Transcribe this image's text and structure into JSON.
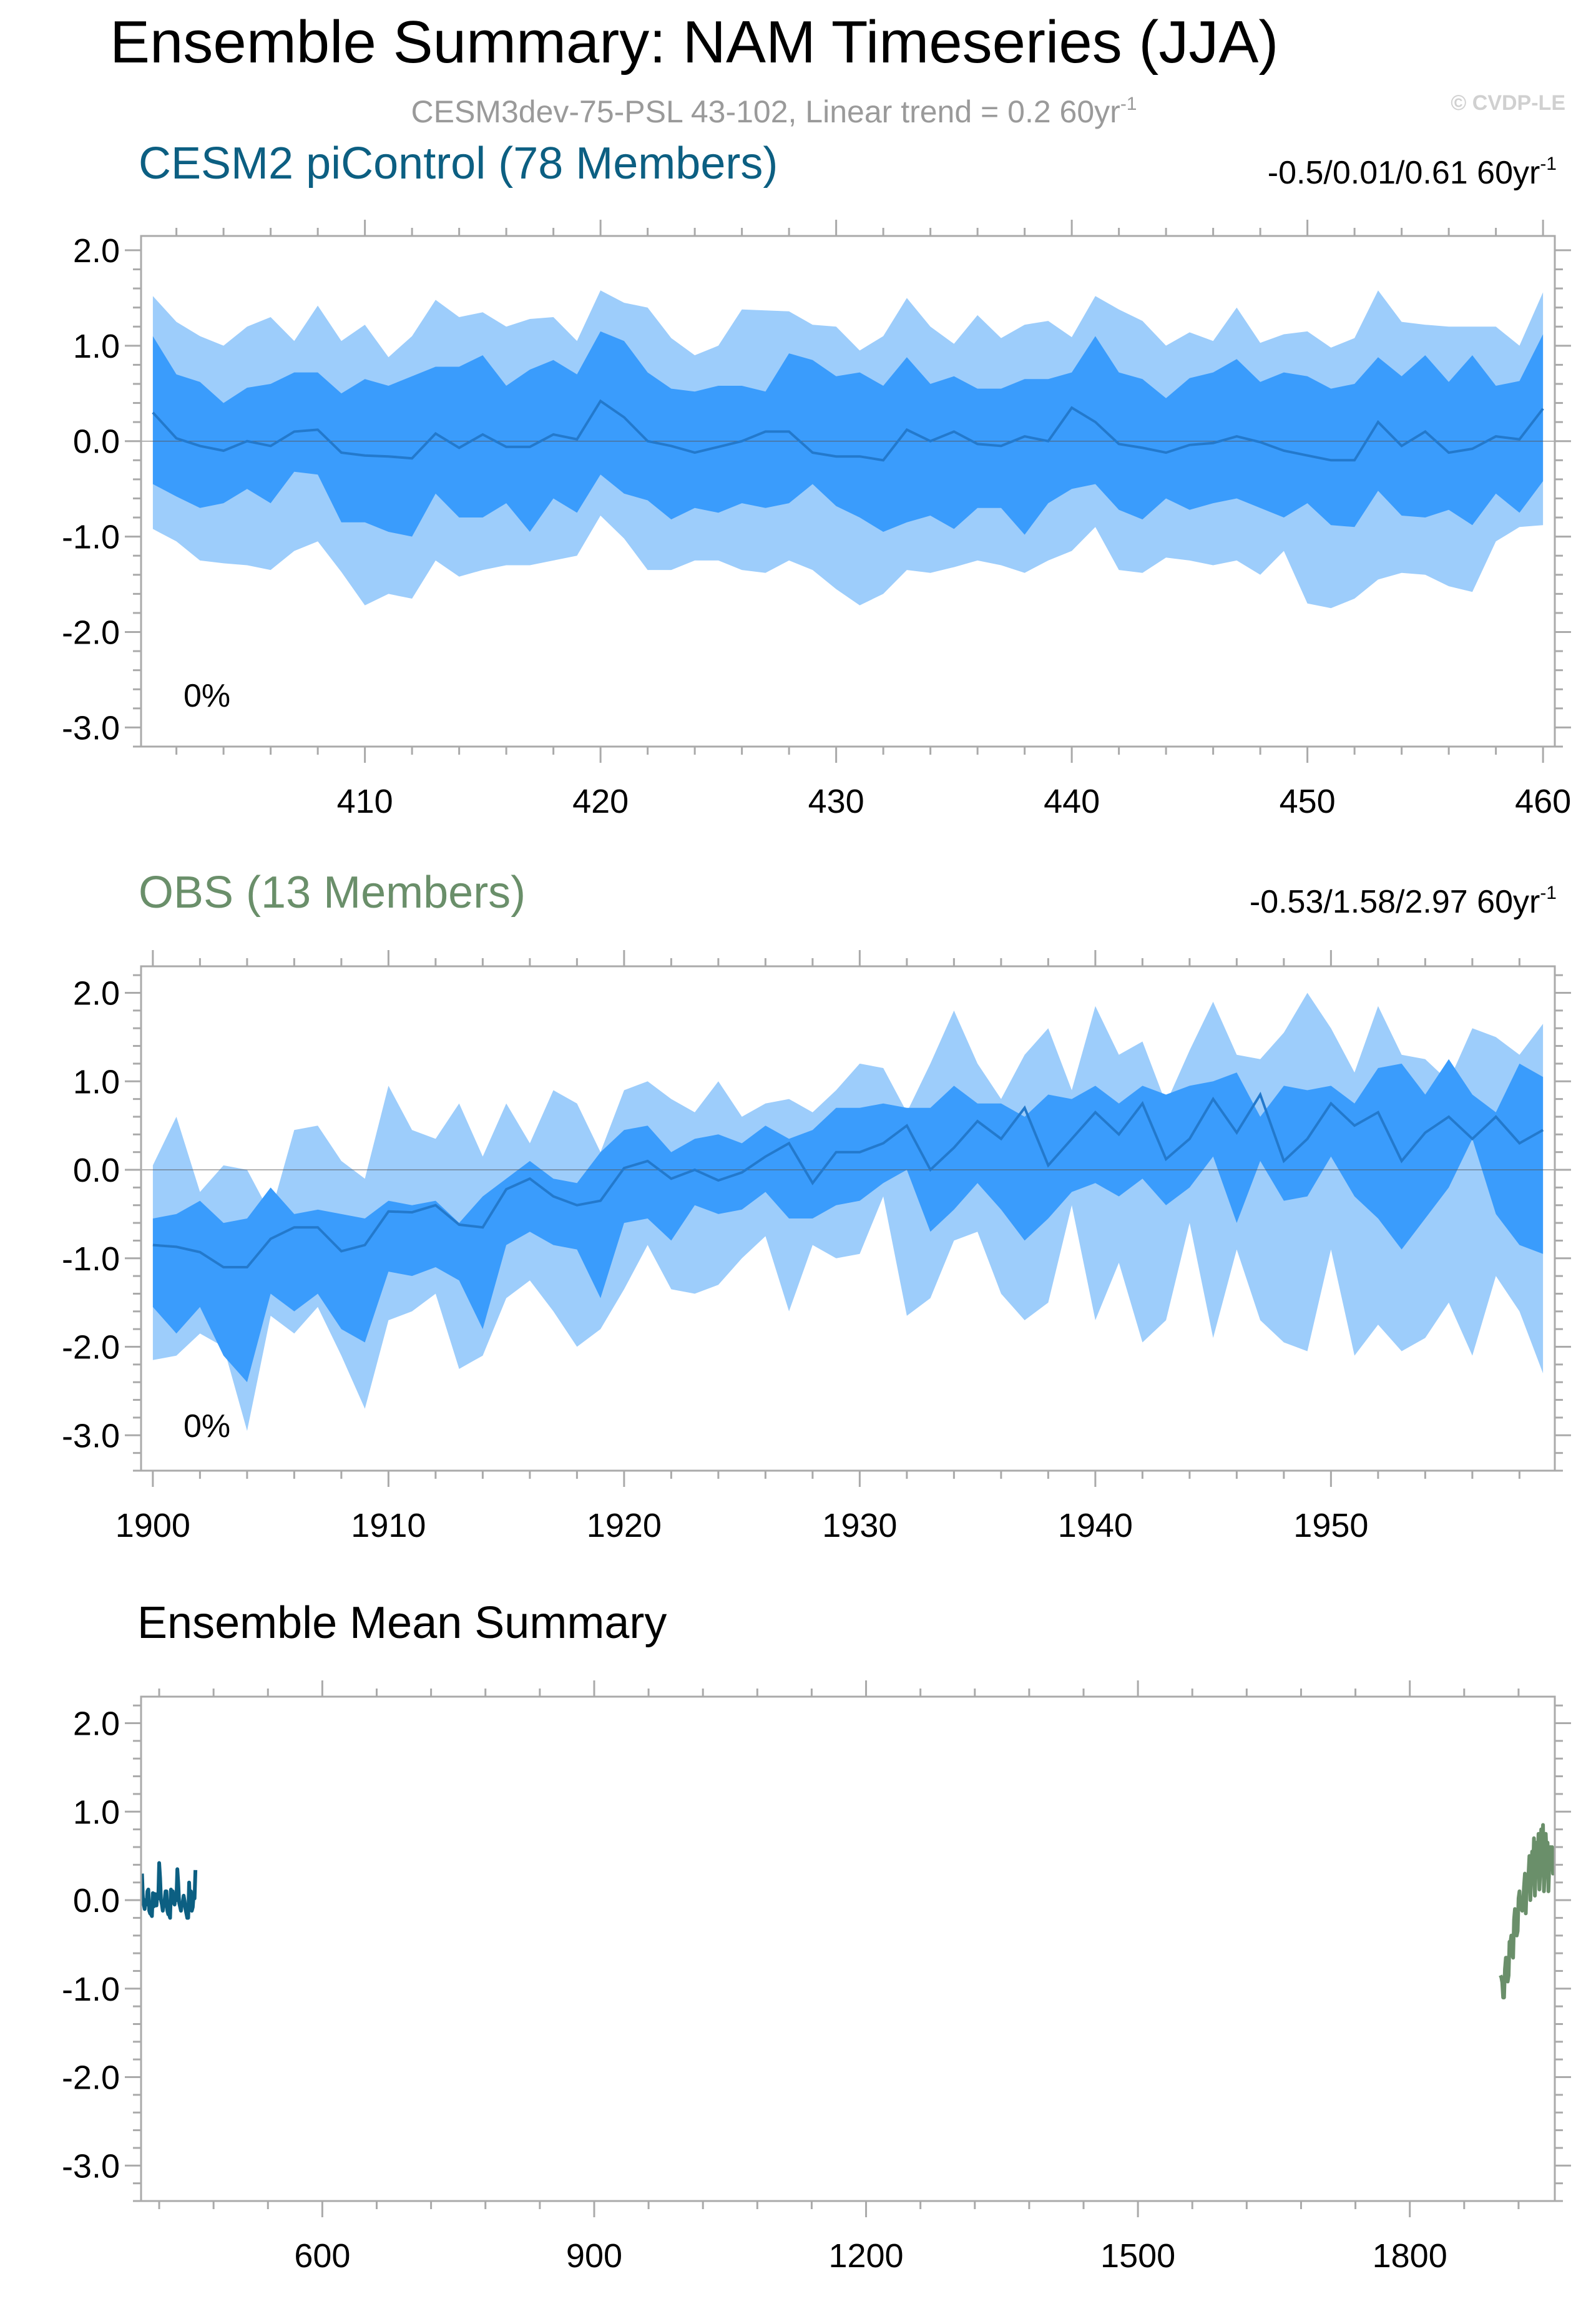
{
  "page": {
    "title": "Ensemble Summary: NAM Timeseries (JJA)",
    "subtitle": "CESM3dev-75-PSL 43-102, Linear trend = 0.2 60yr",
    "subtitle_sup": "-1",
    "watermark": "© CVDP-LE"
  },
  "colors": {
    "band_outer": "#9dcdfb",
    "band_inner": "#3a9cfc",
    "mean_line": "#2379cc",
    "cesm_title": "#0c5f82",
    "obs_title": "#6a8f6a",
    "frame": "#aaaaaa",
    "zero_line": "#555555",
    "mean_panel_cesm": "#0c5f82",
    "mean_panel_obs": "#6a8f6a"
  },
  "chart_data": [
    {
      "type": "area",
      "title": "CESM2 piControl (78 Members)",
      "trend_label": "-0.5/0.01/0.61 60yr",
      "trend_sup": "-1",
      "percent_label": "0%",
      "xlim": [
        400.5,
        460.5
      ],
      "ylim": [
        -3.2,
        2.15
      ],
      "yticks": [
        -3.0,
        -2.0,
        -1.0,
        0.0,
        1.0,
        2.0
      ],
      "ytick_labels": [
        "-3.0",
        "-2.0",
        "-1.0",
        "0.0",
        "1.0",
        "2.0"
      ],
      "xticks": [
        410,
        420,
        430,
        440,
        450,
        460
      ],
      "xtick_labels": [
        "410",
        "420",
        "430",
        "440",
        "450",
        "460"
      ],
      "x": [
        401,
        402,
        403,
        404,
        405,
        406,
        407,
        408,
        409,
        410,
        411,
        412,
        413,
        414,
        415,
        416,
        417,
        418,
        419,
        420,
        421,
        422,
        423,
        424,
        425,
        426,
        427,
        428,
        429,
        430,
        431,
        432,
        433,
        434,
        435,
        436,
        437,
        438,
        439,
        440,
        441,
        442,
        443,
        444,
        445,
        446,
        447,
        448,
        449,
        450,
        451,
        452,
        453,
        454,
        455,
        456,
        457,
        458,
        459,
        460
      ],
      "series": [
        {
          "role": "max",
          "values": [
            1.52,
            1.25,
            1.1,
            1.0,
            1.2,
            1.3,
            1.05,
            1.42,
            1.05,
            1.22,
            0.88,
            1.1,
            1.48,
            1.3,
            1.35,
            1.2,
            1.28,
            1.3,
            1.05,
            1.58,
            1.45,
            1.4,
            1.08,
            0.9,
            1.0,
            1.38,
            1.37,
            1.36,
            1.22,
            1.2,
            0.95,
            1.1,
            1.5,
            1.2,
            1.02,
            1.32,
            1.08,
            1.22,
            1.26,
            1.09,
            1.52,
            1.38,
            1.26,
            1.0,
            1.14,
            1.05,
            1.4,
            1.03,
            1.12,
            1.15,
            0.98,
            1.08,
            1.58,
            1.25,
            1.22,
            1.2,
            1.2,
            1.2,
            1.0,
            1.56
          ]
        },
        {
          "role": "p75",
          "values": [
            1.1,
            0.7,
            0.62,
            0.4,
            0.56,
            0.6,
            0.72,
            0.72,
            0.5,
            0.65,
            0.58,
            0.68,
            0.78,
            0.78,
            0.9,
            0.58,
            0.75,
            0.85,
            0.7,
            1.15,
            1.05,
            0.72,
            0.55,
            0.52,
            0.58,
            0.58,
            0.52,
            0.92,
            0.85,
            0.68,
            0.72,
            0.58,
            0.88,
            0.6,
            0.68,
            0.55,
            0.55,
            0.65,
            0.65,
            0.72,
            1.1,
            0.72,
            0.65,
            0.45,
            0.66,
            0.72,
            0.86,
            0.62,
            0.72,
            0.68,
            0.55,
            0.6,
            0.88,
            0.68,
            0.9,
            0.62,
            0.9,
            0.58,
            0.63,
            1.12
          ]
        },
        {
          "role": "mean",
          "values": [
            0.3,
            0.03,
            -0.05,
            -0.1,
            -0.0,
            -0.05,
            0.1,
            0.12,
            -0.12,
            -0.15,
            -0.16,
            -0.18,
            0.08,
            -0.07,
            0.07,
            -0.06,
            -0.06,
            0.07,
            0.02,
            0.42,
            0.25,
            0.0,
            -0.05,
            -0.12,
            -0.06,
            0.0,
            0.1,
            0.1,
            -0.12,
            -0.16,
            -0.16,
            -0.2,
            0.12,
            0.0,
            0.1,
            -0.03,
            -0.05,
            0.05,
            0.0,
            0.35,
            0.2,
            -0.03,
            -0.07,
            -0.12,
            -0.04,
            -0.02,
            0.05,
            -0.01,
            -0.1,
            -0.15,
            -0.2,
            -0.2,
            0.2,
            -0.05,
            0.1,
            -0.12,
            -0.08,
            0.05,
            0.02,
            0.34
          ]
        },
        {
          "role": "p25",
          "values": [
            -0.45,
            -0.58,
            -0.7,
            -0.65,
            -0.5,
            -0.65,
            -0.32,
            -0.35,
            -0.85,
            -0.85,
            -0.95,
            -1.0,
            -0.55,
            -0.8,
            -0.8,
            -0.65,
            -0.95,
            -0.6,
            -0.75,
            -0.35,
            -0.55,
            -0.62,
            -0.82,
            -0.7,
            -0.75,
            -0.65,
            -0.7,
            -0.65,
            -0.45,
            -0.68,
            -0.8,
            -0.95,
            -0.85,
            -0.78,
            -0.92,
            -0.7,
            -0.7,
            -0.98,
            -0.65,
            -0.5,
            -0.45,
            -0.72,
            -0.82,
            -0.6,
            -0.72,
            -0.65,
            -0.6,
            -0.7,
            -0.8,
            -0.65,
            -0.88,
            -0.9,
            -0.52,
            -0.78,
            -0.8,
            -0.72,
            -0.88,
            -0.55,
            -0.75,
            -0.42
          ]
        },
        {
          "role": "min",
          "values": [
            -0.92,
            -1.05,
            -1.25,
            -1.28,
            -1.3,
            -1.35,
            -1.15,
            -1.05,
            -1.37,
            -1.72,
            -1.6,
            -1.65,
            -1.25,
            -1.42,
            -1.35,
            -1.3,
            -1.3,
            -1.25,
            -1.2,
            -0.78,
            -1.02,
            -1.35,
            -1.35,
            -1.25,
            -1.25,
            -1.35,
            -1.38,
            -1.25,
            -1.35,
            -1.55,
            -1.72,
            -1.6,
            -1.35,
            -1.38,
            -1.32,
            -1.25,
            -1.3,
            -1.38,
            -1.25,
            -1.15,
            -0.9,
            -1.35,
            -1.38,
            -1.22,
            -1.25,
            -1.3,
            -1.25,
            -1.4,
            -1.15,
            -1.7,
            -1.75,
            -1.65,
            -1.45,
            -1.38,
            -1.4,
            -1.52,
            -1.58,
            -1.05,
            -0.9,
            -0.88
          ]
        }
      ]
    },
    {
      "type": "area",
      "title": "OBS (13 Members)",
      "trend_label": "-0.53/1.58/2.97 60yr",
      "trend_sup": "-1",
      "percent_label": "0%",
      "xlim": [
        1899.5,
        1959.5
      ],
      "ylim": [
        -3.4,
        2.3
      ],
      "yticks": [
        -3.0,
        -2.0,
        -1.0,
        0.0,
        1.0,
        2.0
      ],
      "ytick_labels": [
        "-3.0",
        "-2.0",
        "-1.0",
        "0.0",
        "1.0",
        "2.0"
      ],
      "xticks": [
        1900,
        1910,
        1920,
        1930,
        1940,
        1950
      ],
      "xtick_labels": [
        "1900",
        "1910",
        "1920",
        "1930",
        "1940",
        "1950"
      ],
      "x": [
        1900,
        1901,
        1902,
        1903,
        1904,
        1905,
        1906,
        1907,
        1908,
        1909,
        1910,
        1911,
        1912,
        1913,
        1914,
        1915,
        1916,
        1917,
        1918,
        1919,
        1920,
        1921,
        1922,
        1923,
        1924,
        1925,
        1926,
        1927,
        1928,
        1929,
        1930,
        1931,
        1932,
        1933,
        1934,
        1935,
        1936,
        1937,
        1938,
        1939,
        1940,
        1941,
        1942,
        1943,
        1944,
        1945,
        1946,
        1947,
        1948,
        1949,
        1950,
        1951,
        1952,
        1953,
        1954,
        1955,
        1956,
        1957,
        1958,
        1959
      ],
      "series": [
        {
          "role": "max",
          "values": [
            0.05,
            0.6,
            -0.25,
            0.05,
            0.0,
            -0.5,
            0.45,
            0.5,
            0.1,
            -0.1,
            0.95,
            0.45,
            0.35,
            0.75,
            0.15,
            0.75,
            0.3,
            0.9,
            0.75,
            0.2,
            0.9,
            1.0,
            0.8,
            0.65,
            1.0,
            0.6,
            0.75,
            0.8,
            0.65,
            0.9,
            1.2,
            1.15,
            0.65,
            1.2,
            1.8,
            1.2,
            0.8,
            1.3,
            1.6,
            0.9,
            1.85,
            1.3,
            1.45,
            0.75,
            1.35,
            1.9,
            1.3,
            1.25,
            1.55,
            2.0,
            1.6,
            1.1,
            1.85,
            1.3,
            1.25,
            1.0,
            1.6,
            1.5,
            1.3,
            1.65
          ]
        },
        {
          "role": "p75",
          "values": [
            -0.55,
            -0.5,
            -0.35,
            -0.6,
            -0.55,
            -0.2,
            -0.5,
            -0.45,
            -0.5,
            -0.55,
            -0.35,
            -0.4,
            -0.35,
            -0.6,
            -0.3,
            -0.1,
            0.1,
            -0.1,
            -0.15,
            0.2,
            0.45,
            0.5,
            0.2,
            0.35,
            0.4,
            0.3,
            0.5,
            0.35,
            0.45,
            0.7,
            0.7,
            0.75,
            0.7,
            0.7,
            0.95,
            0.75,
            0.75,
            0.6,
            0.85,
            0.8,
            0.95,
            0.75,
            0.95,
            0.85,
            0.95,
            1.0,
            1.1,
            0.6,
            0.95,
            0.9,
            0.95,
            0.75,
            1.15,
            1.2,
            0.85,
            1.25,
            0.85,
            0.65,
            1.2,
            1.05
          ]
        },
        {
          "role": "mean",
          "values": [
            -0.85,
            -0.87,
            -0.93,
            -1.1,
            -1.1,
            -0.78,
            -0.65,
            -0.65,
            -0.92,
            -0.85,
            -0.47,
            -0.48,
            -0.4,
            -0.62,
            -0.65,
            -0.22,
            -0.1,
            -0.3,
            -0.4,
            -0.35,
            0.02,
            0.1,
            -0.1,
            0.0,
            -0.12,
            -0.03,
            0.15,
            0.3,
            -0.15,
            0.2,
            0.2,
            0.3,
            0.5,
            0.0,
            0.25,
            0.55,
            0.35,
            0.7,
            0.05,
            0.35,
            0.65,
            0.4,
            0.75,
            0.12,
            0.35,
            0.8,
            0.42,
            0.85,
            0.1,
            0.35,
            0.75,
            0.5,
            0.65,
            0.1,
            0.42,
            0.6,
            0.35,
            0.6,
            0.3,
            0.45
          ]
        },
        {
          "role": "p25",
          "values": [
            -1.55,
            -1.85,
            -1.55,
            -2.1,
            -2.4,
            -1.4,
            -1.6,
            -1.4,
            -1.8,
            -1.95,
            -1.15,
            -1.2,
            -1.1,
            -1.25,
            -1.8,
            -0.85,
            -0.7,
            -0.85,
            -0.9,
            -1.45,
            -0.6,
            -0.55,
            -0.8,
            -0.4,
            -0.5,
            -0.45,
            -0.25,
            -0.55,
            -0.55,
            -0.4,
            -0.35,
            -0.15,
            0.0,
            -0.7,
            -0.45,
            -0.15,
            -0.45,
            -0.8,
            -0.55,
            -0.25,
            -0.15,
            -0.3,
            -0.1,
            -0.4,
            -0.2,
            0.15,
            -0.6,
            0.1,
            -0.35,
            -0.3,
            0.15,
            -0.3,
            -0.55,
            -0.9,
            -0.55,
            -0.2,
            0.35,
            -0.5,
            -0.85,
            -0.95
          ]
        },
        {
          "role": "min",
          "values": [
            -2.15,
            -2.1,
            -1.85,
            -2.0,
            -2.95,
            -1.65,
            -1.85,
            -1.55,
            -2.1,
            -2.7,
            -1.7,
            -1.6,
            -1.4,
            -2.25,
            -2.1,
            -1.45,
            -1.25,
            -1.6,
            -2.0,
            -1.8,
            -1.35,
            -0.85,
            -1.35,
            -1.4,
            -1.3,
            -1.0,
            -0.75,
            -1.6,
            -0.85,
            -1.0,
            -0.95,
            -0.3,
            -1.65,
            -1.45,
            -0.8,
            -0.7,
            -1.4,
            -1.7,
            -1.5,
            -0.4,
            -1.7,
            -1.05,
            -1.95,
            -1.7,
            -0.6,
            -1.9,
            -0.9,
            -1.7,
            -1.95,
            -2.05,
            -0.9,
            -2.1,
            -1.75,
            -2.05,
            -1.9,
            -1.5,
            -2.1,
            -1.2,
            -1.6,
            -2.3
          ]
        }
      ]
    },
    {
      "type": "line",
      "title": "Ensemble Mean Summary",
      "xlim": [
        400,
        1960
      ],
      "ylim": [
        -3.4,
        2.3
      ],
      "yticks": [
        -3.0,
        -2.0,
        -1.0,
        0.0,
        1.0,
        2.0
      ],
      "ytick_labels": [
        "-3.0",
        "-2.0",
        "-1.0",
        "0.0",
        "1.0",
        "2.0"
      ],
      "xticks": [
        600,
        900,
        1200,
        1500,
        1800
      ],
      "xtick_labels": [
        "600",
        "900",
        "1200",
        "1500",
        "1800"
      ],
      "series": [
        {
          "role": "cesm",
          "ref_panel": 0,
          "x_from": 401,
          "x_to": 460
        },
        {
          "role": "obs",
          "ref_panel": 1,
          "x_from": 1900,
          "x_to": 1959
        }
      ]
    }
  ]
}
